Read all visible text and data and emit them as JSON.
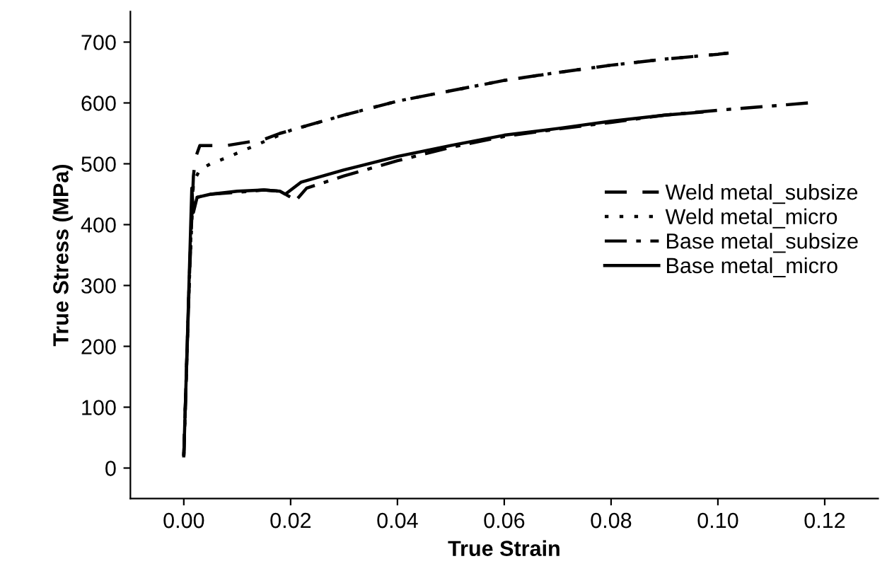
{
  "chart_data": {
    "type": "line",
    "xlabel": "True Strain",
    "ylabel": "True Stress (MPa)",
    "xlim": [
      -0.01,
      0.13
    ],
    "xticks": [
      {
        "value": 0,
        "label": "0.00"
      },
      {
        "value": 0.02,
        "label": "0.02"
      },
      {
        "value": 0.04,
        "label": "0.04"
      },
      {
        "value": 0.06,
        "label": "0.06"
      },
      {
        "value": 0.08,
        "label": "0.08"
      },
      {
        "value": 0.1,
        "label": "0.10"
      },
      {
        "value": 0.12,
        "label": "0.12"
      }
    ],
    "ylim": [
      -50,
      750
    ],
    "yticks": [
      0,
      100,
      200,
      300,
      400,
      500,
      600,
      700
    ],
    "grid": false,
    "legend": "right",
    "marker": "none",
    "series": [
      {
        "name": "Weld metal_subsize",
        "color": "#000000",
        "line_style": "dashed",
        "x": [
          0.0,
          0.001,
          0.0018,
          0.0022,
          0.003,
          0.008,
          0.015,
          0.018,
          0.02,
          0.03,
          0.04,
          0.05,
          0.06,
          0.07,
          0.08,
          0.09,
          0.1,
          0.102
        ],
        "values": [
          20,
          300,
          480,
          510,
          530,
          530,
          540,
          550,
          555,
          580,
          603,
          620,
          637,
          650,
          662,
          672,
          680,
          682
        ]
      },
      {
        "name": "Weld metal_micro",
        "color": "#000000",
        "line_style": "dotted",
        "x": [
          0.0,
          0.001,
          0.0018,
          0.003,
          0.005,
          0.008,
          0.012,
          0.016,
          0.02,
          0.03,
          0.04,
          0.05,
          0.06,
          0.07,
          0.08,
          0.09,
          0.1,
          0.102
        ],
        "values": [
          20,
          300,
          470,
          490,
          500,
          510,
          525,
          540,
          555,
          580,
          603,
          620,
          637,
          650,
          662,
          672,
          680,
          682
        ]
      },
      {
        "name": "Base metal_subsize",
        "color": "#000000",
        "line_style": "dashdot",
        "x": [
          0.0,
          0.001,
          0.0015,
          0.0025,
          0.005,
          0.01,
          0.015,
          0.018,
          0.021,
          0.023,
          0.03,
          0.04,
          0.05,
          0.06,
          0.07,
          0.08,
          0.09,
          0.1,
          0.11,
          0.117
        ],
        "values": [
          20,
          300,
          430,
          445,
          450,
          453,
          457,
          455,
          440,
          460,
          480,
          505,
          527,
          545,
          557,
          568,
          580,
          588,
          595,
          600
        ]
      },
      {
        "name": "Base metal_micro",
        "color": "#000000",
        "line_style": "solid",
        "x": [
          0.0,
          0.0008,
          0.0015,
          0.0018,
          0.0025,
          0.005,
          0.01,
          0.015,
          0.018,
          0.019,
          0.022,
          0.03,
          0.04,
          0.05,
          0.06,
          0.07,
          0.08,
          0.09,
          0.097
        ],
        "values": [
          20,
          250,
          460,
          420,
          445,
          450,
          455,
          457,
          455,
          450,
          470,
          490,
          512,
          530,
          547,
          558,
          570,
          580,
          585
        ]
      }
    ]
  }
}
